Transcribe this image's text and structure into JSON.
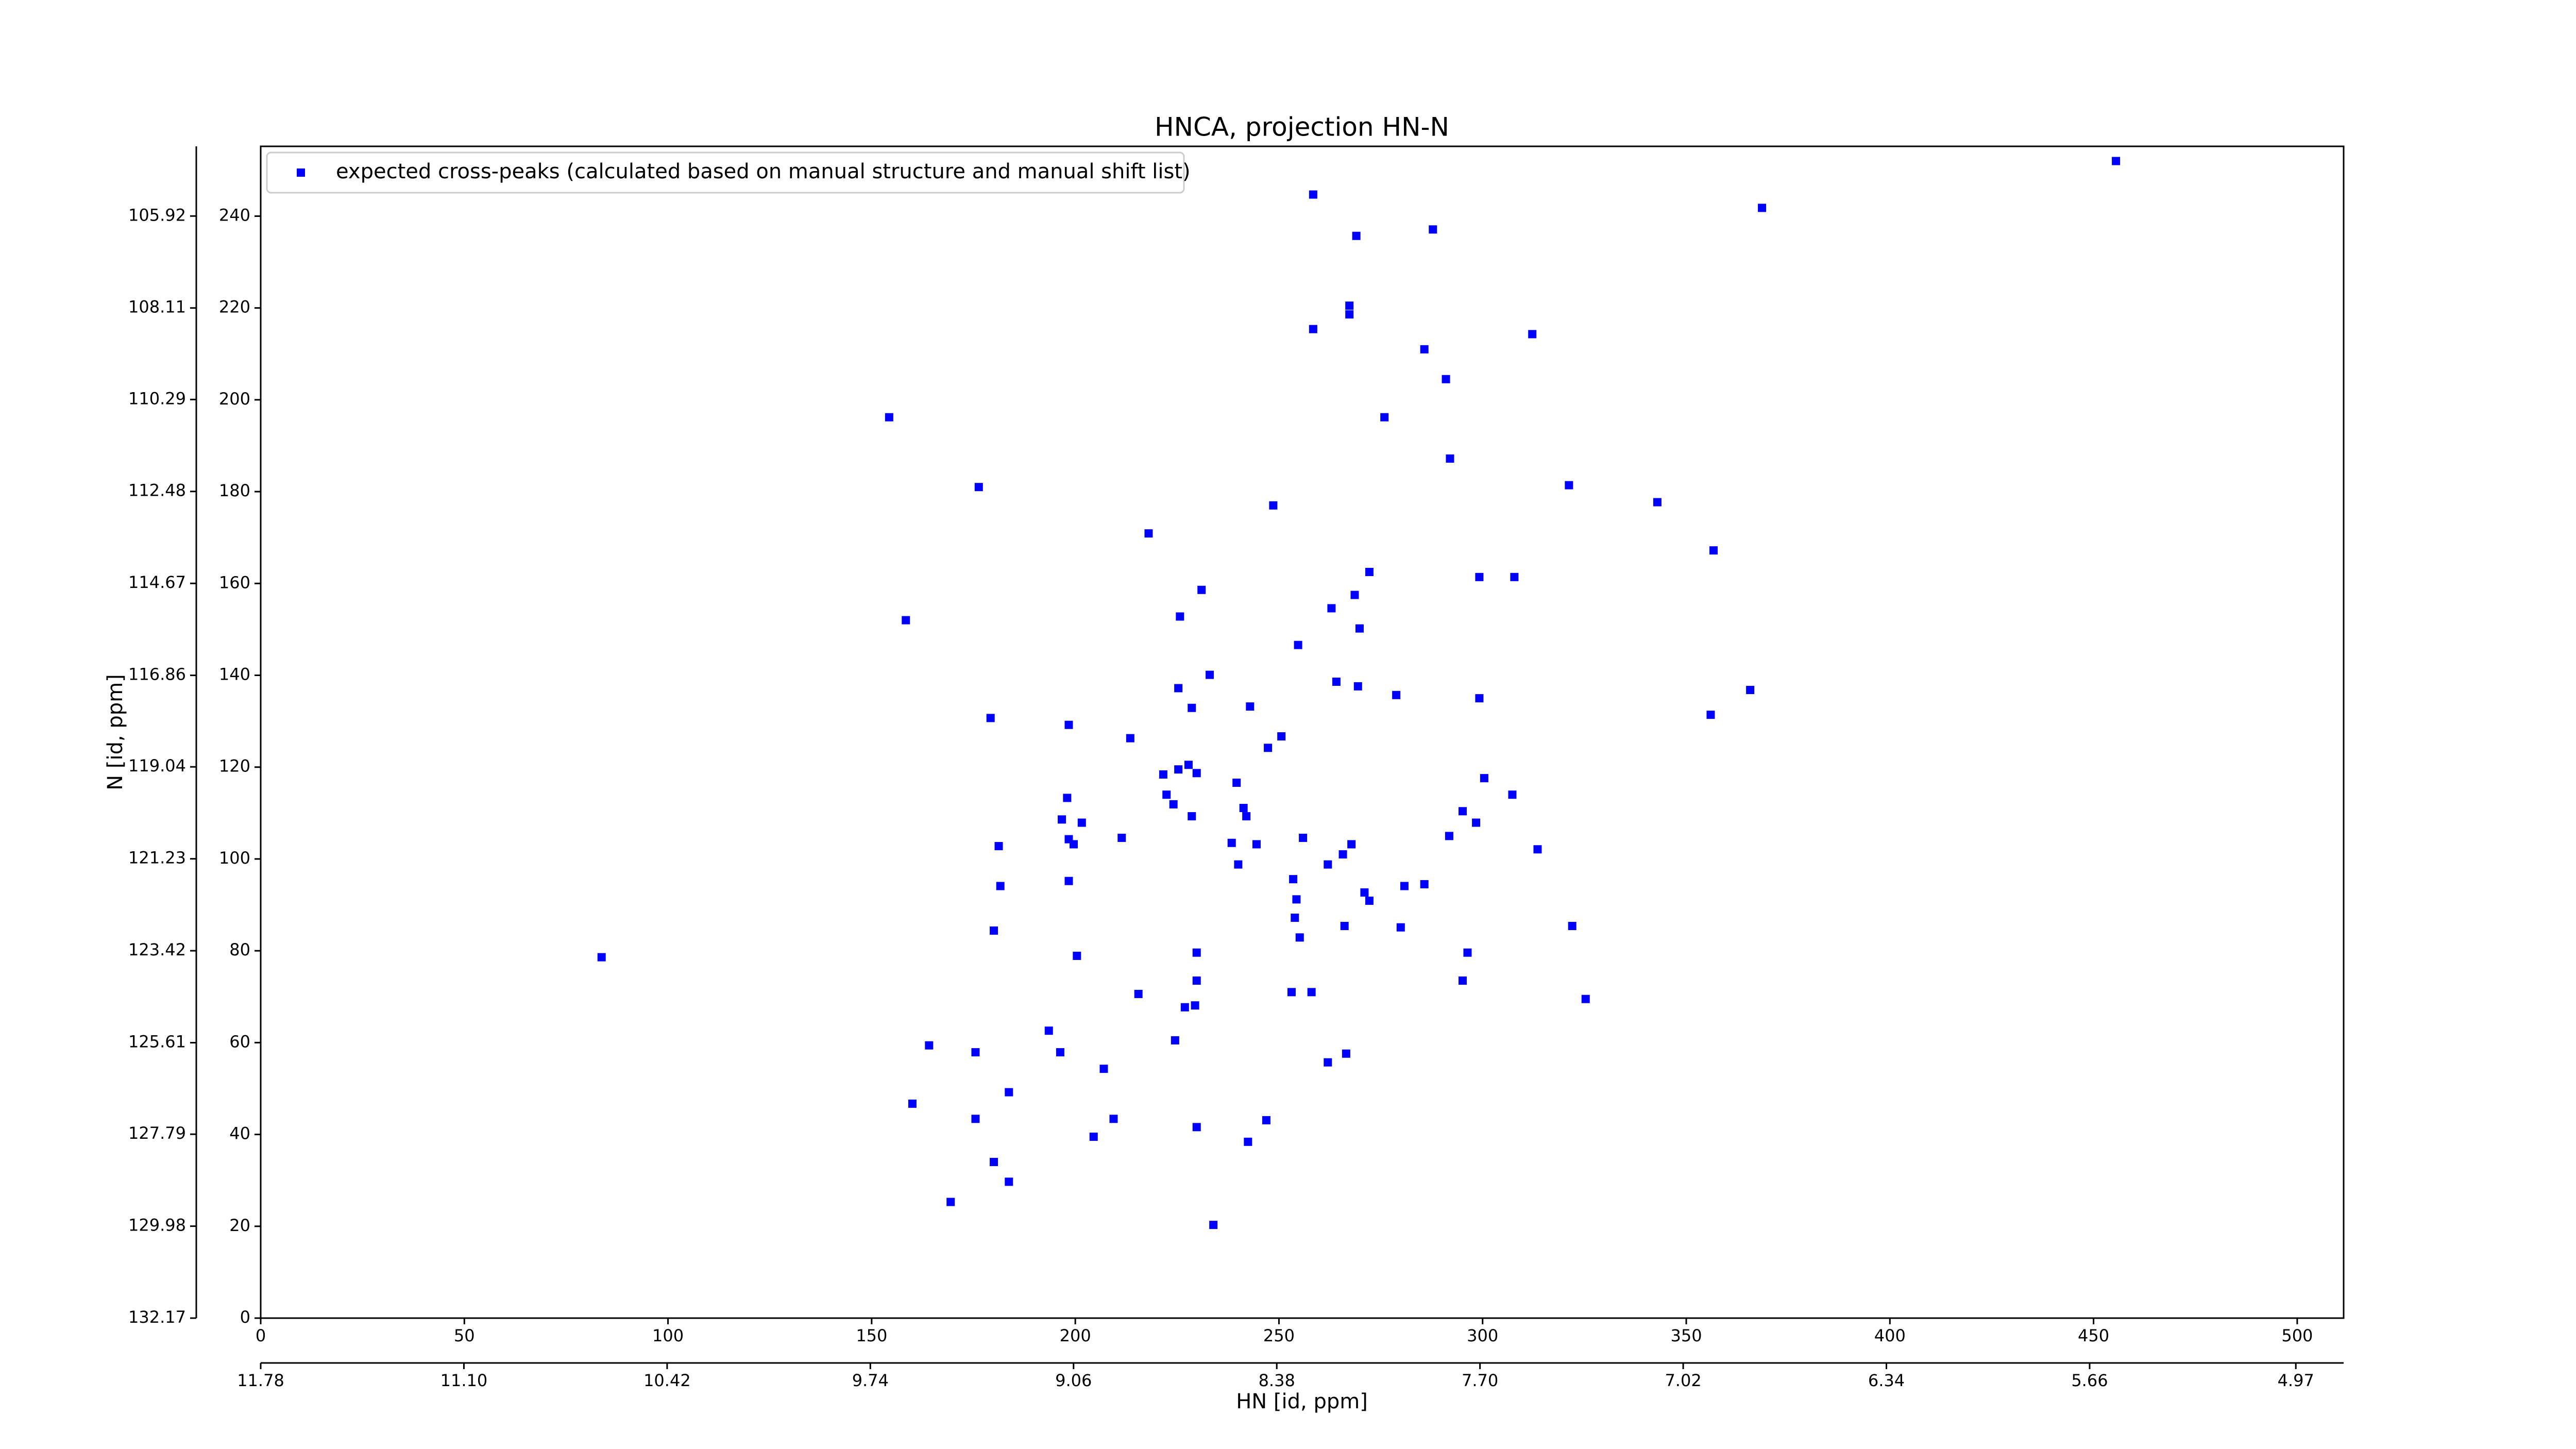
{
  "chart_data": {
    "type": "scatter",
    "title": "HNCA, projection HN-N",
    "xlabel": "HN [id, ppm]",
    "ylabel": "N [id, ppm]",
    "xlim": [
      0,
      511.4
    ],
    "ylim": [
      0,
      255.2
    ],
    "xticks": [
      0,
      50,
      100,
      150,
      200,
      250,
      300,
      350,
      400,
      450,
      500
    ],
    "yticks": [
      0,
      20,
      40,
      60,
      80,
      100,
      120,
      140,
      160,
      180,
      200,
      220,
      240
    ],
    "x2lim": [
      11.78,
      4.81
    ],
    "x2ticks": [
      11.78,
      {
        "value": 11.1,
        "label": "11.10"
      },
      10.42,
      9.74,
      9.06,
      8.38,
      {
        "value": 7.7,
        "label": "7.70"
      },
      7.02,
      6.34,
      5.66,
      4.97
    ],
    "y2lim": [
      132.17,
      104.26
    ],
    "y2ticks": [
      132.17,
      129.98,
      127.79,
      125.61,
      123.42,
      121.23,
      119.04,
      116.86,
      114.67,
      112.48,
      110.29,
      108.11,
      105.92
    ],
    "legend": "upper left",
    "series": [
      {
        "name": "expected cross-peaks (calculated based on manual structure and manual shift list)",
        "color": "#0000ff",
        "x": [
          455.5,
          258.4,
          368.6,
          269,
          287.8,
          267.3,
          267.3,
          258.4,
          312.2,
          285.7,
          291,
          154.3,
          275.9,
          292,
          176.3,
          321.2,
          248.6,
          342.9,
          218,
          356.7,
          272.2,
          299.2,
          307.8,
          231,
          268.6,
          262.9,
          158.4,
          225.7,
          269.8,
          254.7,
          233,
          264.1,
          269.4,
          225.3,
          278.8,
          299.2,
          365.7,
          228.6,
          242.9,
          179.2,
          356,
          198.4,
          250.6,
          213.5,
          247.3,
          225.3,
          227.8,
          229.8,
          221.6,
          300.4,
          239.6,
          307.3,
          222.4,
          224.1,
          198,
          241.3,
          295.1,
          228.6,
          242,
          196.7,
          201.6,
          298.4,
          198.4,
          211.4,
          199.6,
          291.8,
          255.9,
          267.8,
          238.4,
          244.5,
          181.2,
          313.5,
          265.7,
          262,
          240,
          198.4,
          253.5,
          181.6,
          280.8,
          285.7,
          271,
          272.2,
          254.3,
          253.9,
          322,
          180,
          266.1,
          279.9,
          255.1,
          296.3,
          229.8,
          200.4,
          83.7,
          295.1,
          229.8,
          253.1,
          258,
          215.5,
          325.3,
          229.4,
          226.9,
          193.5,
          224.5,
          164.1,
          196.3,
          175.5,
          266.5,
          262,
          207,
          160,
          183.7,
          175.5,
          209.4,
          229.8,
          246.9,
          204.5,
          242.4,
          180,
          183.7,
          169.4,
          233.9
        ],
        "values": [
          252,
          244.7,
          241.8,
          235.7,
          237.1,
          220.5,
          218.6,
          215.4,
          214.3,
          211,
          204.5,
          196.2,
          196.2,
          187.2,
          181,
          181.4,
          177,
          177.7,
          170.9,
          167.2,
          162.5,
          161.4,
          161.4,
          158.6,
          157.5,
          154.6,
          152,
          152.8,
          150.2,
          146.6,
          140.1,
          138.6,
          137.6,
          137.2,
          135.7,
          135,
          136.8,
          132.9,
          133.2,
          130.7,
          131.4,
          129.2,
          126.7,
          126.3,
          124.2,
          119.5,
          120.5,
          118.7,
          118.4,
          117.6,
          116.6,
          114,
          114,
          111.9,
          113.3,
          111.1,
          110.4,
          109.3,
          109.3,
          108.6,
          107.9,
          107.9,
          104.3,
          104.6,
          103.2,
          105,
          104.6,
          103.2,
          103.5,
          103.2,
          102.8,
          102.1,
          101,
          98.8,
          98.8,
          95.2,
          95.6,
          94.1,
          94.1,
          94.5,
          92.7,
          90.9,
          91.2,
          87.2,
          85.4,
          84.4,
          85.4,
          85.1,
          82.9,
          79.6,
          79.6,
          78.9,
          78.6,
          73.5,
          73.5,
          71,
          71,
          70.6,
          69.5,
          68.1,
          67.7,
          62.6,
          60.5,
          59.4,
          57.9,
          57.9,
          57.6,
          55.7,
          54.3,
          46.7,
          49.2,
          43.4,
          43.4,
          41.6,
          43.1,
          39.5,
          38.4,
          34,
          29.7,
          25.3,
          20.3
        ]
      }
    ]
  }
}
